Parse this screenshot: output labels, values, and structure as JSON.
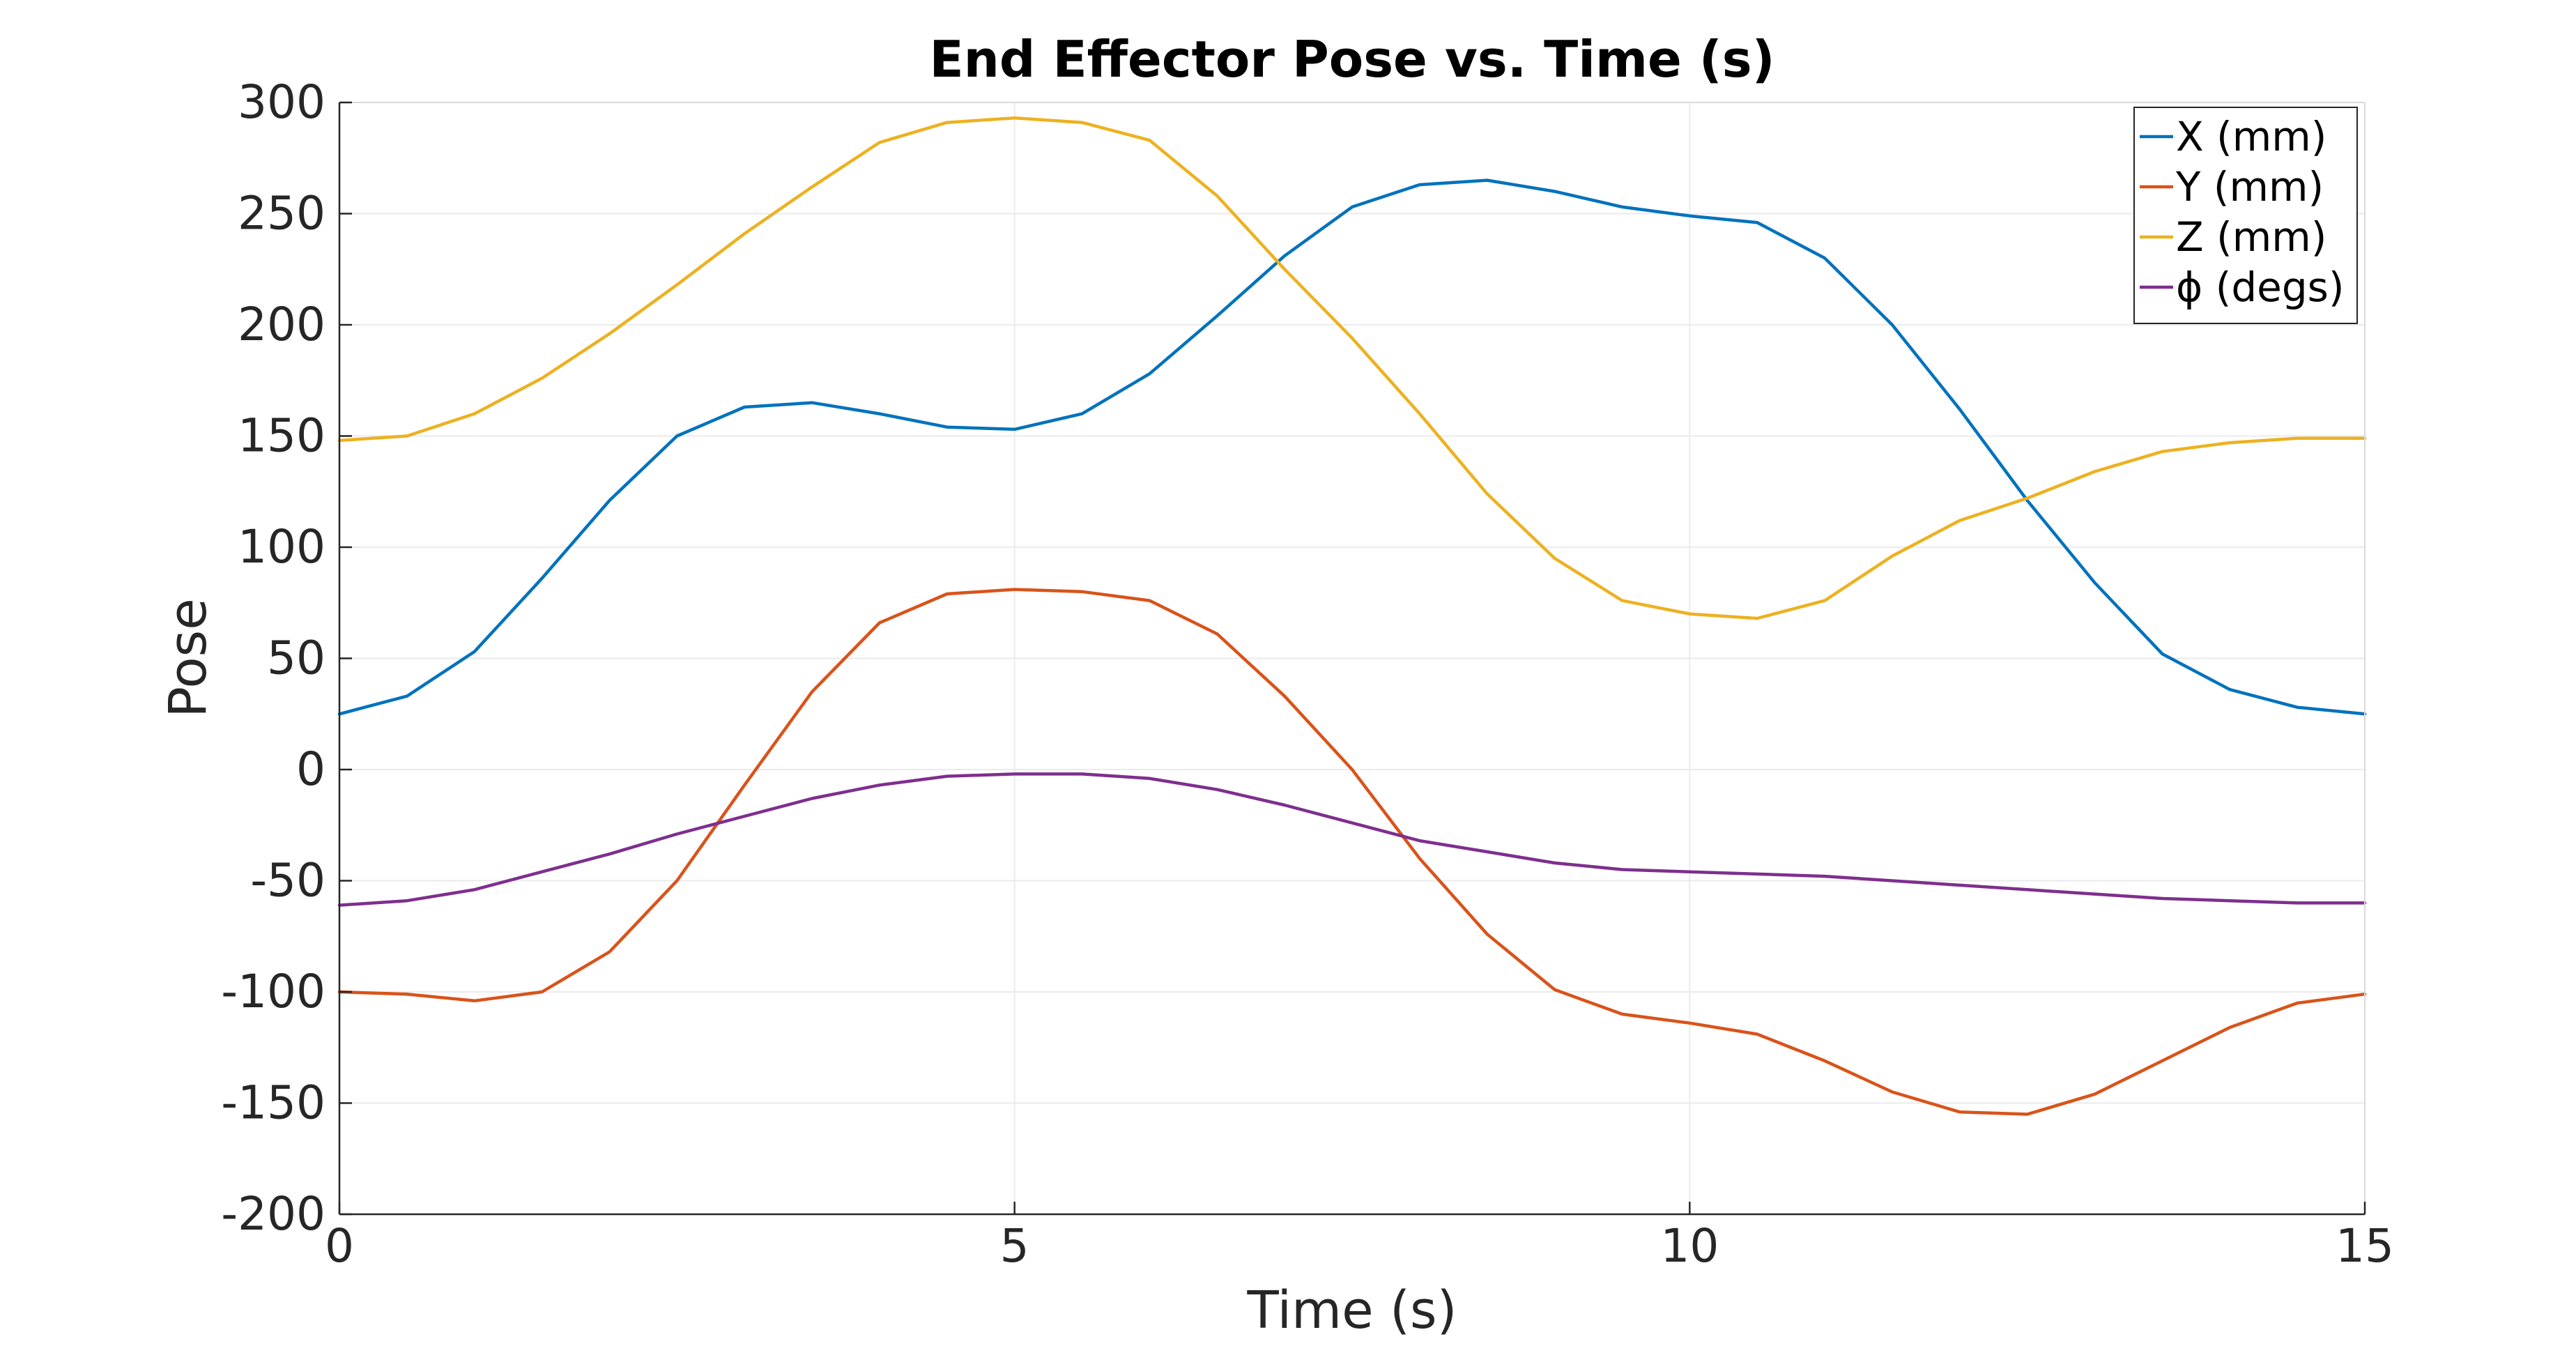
{
  "chart_data": {
    "type": "line",
    "title": "End Effector Pose vs. Time (s)",
    "xlabel": "Time (s)",
    "ylabel": "Pose",
    "xlim": [
      0,
      15
    ],
    "ylim": [
      -200,
      300
    ],
    "xticks": [
      0,
      5,
      10,
      15
    ],
    "yticks": [
      -200,
      -150,
      -100,
      -50,
      0,
      50,
      100,
      150,
      200,
      250,
      300
    ],
    "grid": true,
    "legend_position": "top-right",
    "series": [
      {
        "name": "X (mm)",
        "color": "#0072BD",
        "x": [
          0,
          0.5,
          1,
          1.5,
          2,
          2.5,
          3,
          3.5,
          4,
          4.5,
          5,
          5.5,
          6,
          6.5,
          7,
          7.5,
          8,
          8.5,
          9,
          9.5,
          10,
          10.5,
          11,
          11.5,
          12,
          12.5,
          13,
          13.5,
          14,
          14.5,
          15
        ],
        "y": [
          25,
          33,
          53,
          86,
          121,
          150,
          163,
          165,
          160,
          154,
          153,
          160,
          178,
          204,
          231,
          253,
          263,
          265,
          260,
          253,
          249,
          246,
          230,
          200,
          162,
          121,
          84,
          52,
          36,
          28,
          25
        ]
      },
      {
        "name": "Y (mm)",
        "color": "#D95319",
        "x": [
          0,
          0.5,
          1,
          1.5,
          2,
          2.5,
          3,
          3.5,
          4,
          4.5,
          5,
          5.5,
          6,
          6.5,
          7,
          7.5,
          8,
          8.5,
          9,
          9.5,
          10,
          10.5,
          11,
          11.5,
          12,
          12.5,
          13,
          13.5,
          14,
          14.5,
          15
        ],
        "y": [
          -100,
          -101,
          -104,
          -100,
          -82,
          -50,
          -7,
          35,
          66,
          79,
          81,
          80,
          76,
          61,
          33,
          0,
          -40,
          -74,
          -99,
          -110,
          -114,
          -119,
          -131,
          -145,
          -154,
          -155,
          -146,
          -131,
          -116,
          -105,
          -101
        ]
      },
      {
        "name": "Z (mm)",
        "color": "#EDB120",
        "x": [
          0,
          0.5,
          1,
          1.5,
          2,
          2.5,
          3,
          3.5,
          4,
          4.5,
          5,
          5.5,
          6,
          6.5,
          7,
          7.5,
          8,
          8.5,
          9,
          9.5,
          10,
          10.5,
          11,
          11.5,
          12,
          12.5,
          13,
          13.5,
          14,
          14.5,
          15
        ],
        "y": [
          148,
          150,
          160,
          176,
          196,
          218,
          241,
          262,
          282,
          291,
          293,
          291,
          283,
          258,
          225,
          194,
          160,
          124,
          95,
          76,
          70,
          68,
          76,
          96,
          112,
          122,
          134,
          143,
          147,
          149,
          149
        ]
      },
      {
        "name": "ϕ (degs)",
        "color": "#7E2F8E",
        "x": [
          0,
          0.5,
          1,
          1.5,
          2,
          2.5,
          3,
          3.5,
          4,
          4.5,
          5,
          5.5,
          6,
          6.5,
          7,
          7.5,
          8,
          8.5,
          9,
          9.5,
          10,
          10.5,
          11,
          11.5,
          12,
          12.5,
          13,
          13.5,
          14,
          14.5,
          15
        ],
        "y": [
          -61,
          -59,
          -54,
          -46,
          -38,
          -29,
          -21,
          -13,
          -7,
          -3,
          -2,
          -2,
          -4,
          -9,
          -16,
          -24,
          -32,
          -37,
          -42,
          -45,
          -46,
          -47,
          -48,
          -50,
          -52,
          -54,
          -56,
          -58,
          -59,
          -60,
          -60
        ]
      }
    ]
  }
}
